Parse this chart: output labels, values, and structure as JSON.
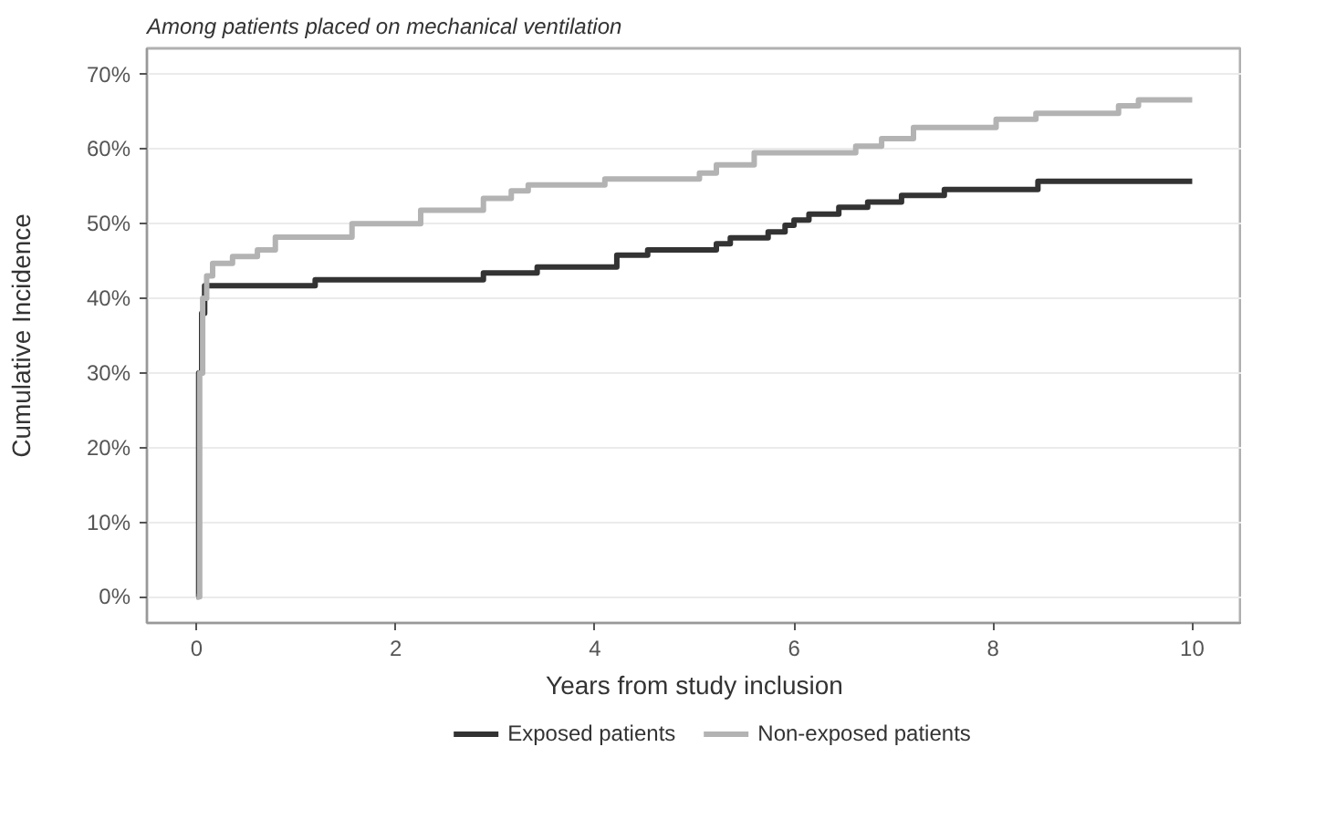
{
  "chart_data": {
    "type": "step",
    "title": "Among patients placed on mechanical ventilation",
    "xlabel": "Years from study inclusion",
    "ylabel": "Cumulative Incidence",
    "xlim": [
      -0.5,
      10.5
    ],
    "ylim": [
      -3.5,
      73.5
    ],
    "xticks": [
      0,
      2,
      4,
      6,
      8,
      10
    ],
    "yticks": [
      {
        "value": 0,
        "label": "0%"
      },
      {
        "value": 10,
        "label": "10%"
      },
      {
        "value": 20,
        "label": "20%"
      },
      {
        "value": 30,
        "label": "30%"
      },
      {
        "value": 40,
        "label": "40%"
      },
      {
        "value": 50,
        "label": "50%"
      },
      {
        "value": 60,
        "label": "60%"
      },
      {
        "value": 70,
        "label": "70%"
      }
    ],
    "grid": "y",
    "legend": "bottom",
    "line_style": "solid",
    "series": [
      {
        "name": "Exposed patients",
        "color": "#333333",
        "x": [
          0,
          0.02,
          0.05,
          0.08,
          1.19,
          2.88,
          3.42,
          4.22,
          4.53,
          5.22,
          5.36,
          5.74,
          5.91,
          6.0,
          6.15,
          6.45,
          6.74,
          7.08,
          7.51,
          8.45,
          10
        ],
        "values": [
          0,
          30,
          38,
          41.7,
          42.5,
          43.4,
          44.2,
          45.8,
          46.5,
          47.3,
          48.1,
          48.9,
          49.8,
          50.5,
          51.3,
          52.2,
          52.9,
          53.8,
          54.6,
          55.7,
          55.7
        ]
      },
      {
        "name": "Non-exposed patients",
        "color": "#b3b3b3",
        "x": [
          0,
          0.03,
          0.06,
          0.1,
          0.16,
          0.36,
          0.61,
          0.79,
          1.56,
          2.25,
          2.88,
          3.16,
          3.33,
          4.1,
          5.05,
          5.22,
          5.6,
          6.62,
          6.88,
          7.2,
          8.03,
          8.43,
          9.26,
          9.46,
          10
        ],
        "values": [
          0,
          30,
          40,
          43,
          44.7,
          45.6,
          46.5,
          48.2,
          50.0,
          51.8,
          53.4,
          54.4,
          55.2,
          56.0,
          56.8,
          57.9,
          59.5,
          60.4,
          61.4,
          62.9,
          64.0,
          64.8,
          65.8,
          66.6,
          66.6
        ]
      }
    ]
  }
}
